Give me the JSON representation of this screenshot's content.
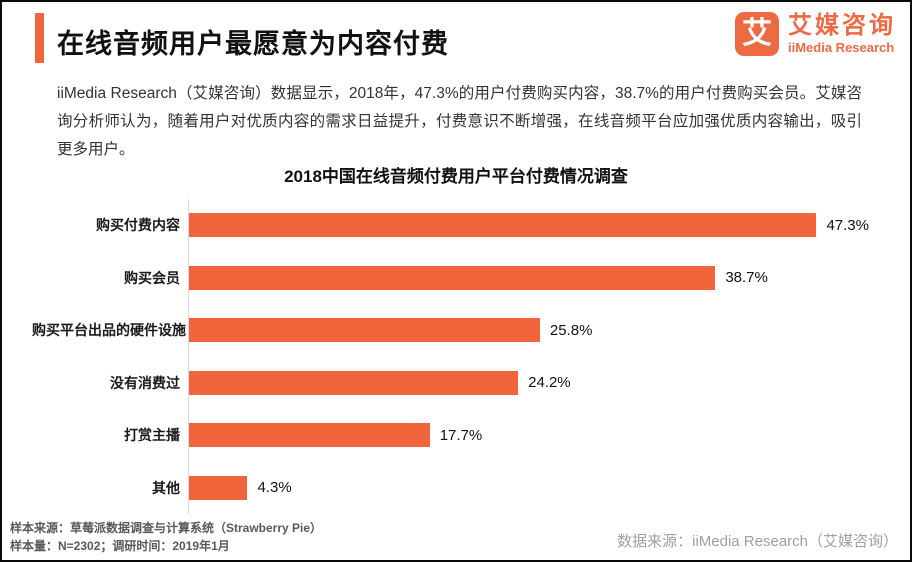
{
  "header": {
    "title": "在线音频用户最愿意为内容付费",
    "accent_color": "#F2653C",
    "logo": {
      "mark_text": "艾",
      "name_cn": "艾媒咨询",
      "name_en": "iiMedia Research",
      "color": "#ED6A42"
    }
  },
  "intro": {
    "text": "iiMedia Research（艾媒咨询）数据显示，2018年，47.3%的用户付费购买内容，38.7%的用户付费购买会员。艾媒咨询分析师认为，随着用户对优质内容的需求日益提升，付费意识不断增强，在线音频平台应加强优质内容输出，吸引更多用户。"
  },
  "chart_data": {
    "type": "bar",
    "orientation": "horizontal",
    "title": "2018中国在线音频付费用户平台付费情况调查",
    "categories": [
      "购买付费内容",
      "购买会员",
      "购买平台出品的硬件设施",
      "没有消费过",
      "打赏主播",
      "其他"
    ],
    "values": [
      47.3,
      38.7,
      25.8,
      24.2,
      17.7,
      4.3
    ],
    "value_labels": [
      "47.3%",
      "38.7%",
      "25.8%",
      "24.2%",
      "17.7%",
      "4.3%"
    ],
    "bar_color": "#F2653C",
    "xlabel": "",
    "ylabel": "",
    "xlim": [
      0,
      50
    ],
    "grid": false,
    "legend": "none"
  },
  "footer": {
    "sample_source": "样本来源：草莓派数据调查与计算系统（Strawberry Pie）",
    "sample_info": "样本量：N=2302；调研时间：2019年1月",
    "data_source": "数据来源：iiMedia Research（艾媒咨询）"
  }
}
